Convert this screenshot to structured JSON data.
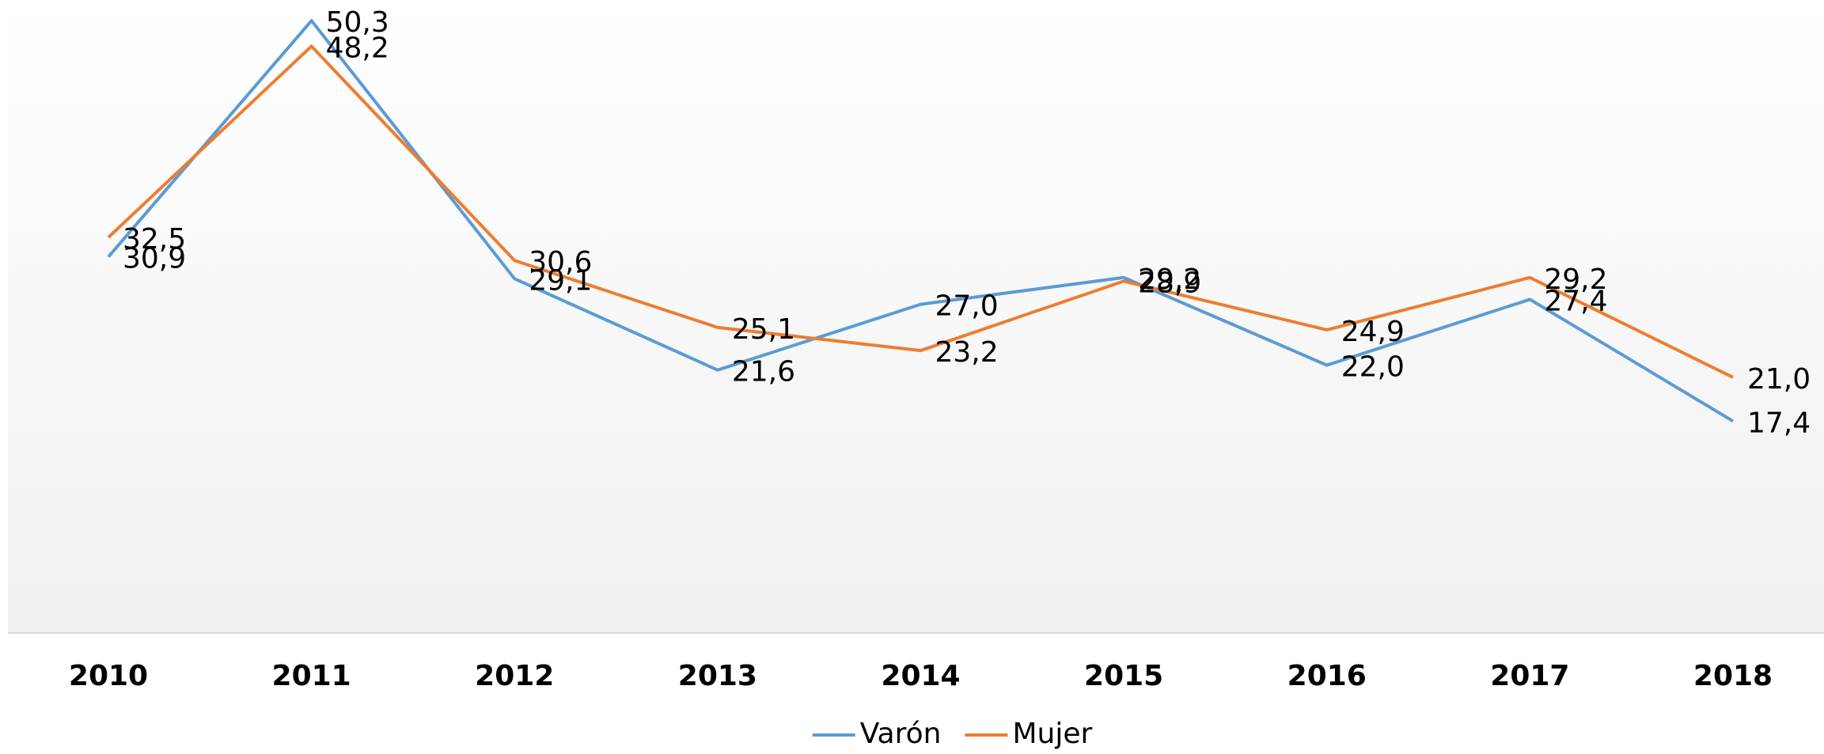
{
  "chart_data": {
    "type": "line",
    "categories": [
      "2010",
      "2011",
      "2012",
      "2013",
      "2014",
      "2015",
      "2016",
      "2017",
      "2018"
    ],
    "series": [
      {
        "name": "Varón",
        "color": "#5b9bd5",
        "values": [
          30.9,
          50.3,
          29.1,
          21.6,
          27.0,
          29.2,
          22.0,
          27.4,
          17.4
        ],
        "value_labels": [
          "30,9",
          "50,3",
          "29,1",
          "21,6",
          "27,0",
          "29,2",
          "22,0",
          "27,4",
          "17,4"
        ]
      },
      {
        "name": "Mujer",
        "color": "#ed7d31",
        "values": [
          32.5,
          48.2,
          30.6,
          25.1,
          23.2,
          28.9,
          24.9,
          29.2,
          21.0
        ],
        "value_labels": [
          "32,5",
          "48,2",
          "30,6",
          "25,1",
          "23,2",
          "28,9",
          "24,9",
          "29,2",
          "21,0"
        ]
      }
    ],
    "ylim": [
      0,
      52
    ],
    "legend": "bottom"
  }
}
